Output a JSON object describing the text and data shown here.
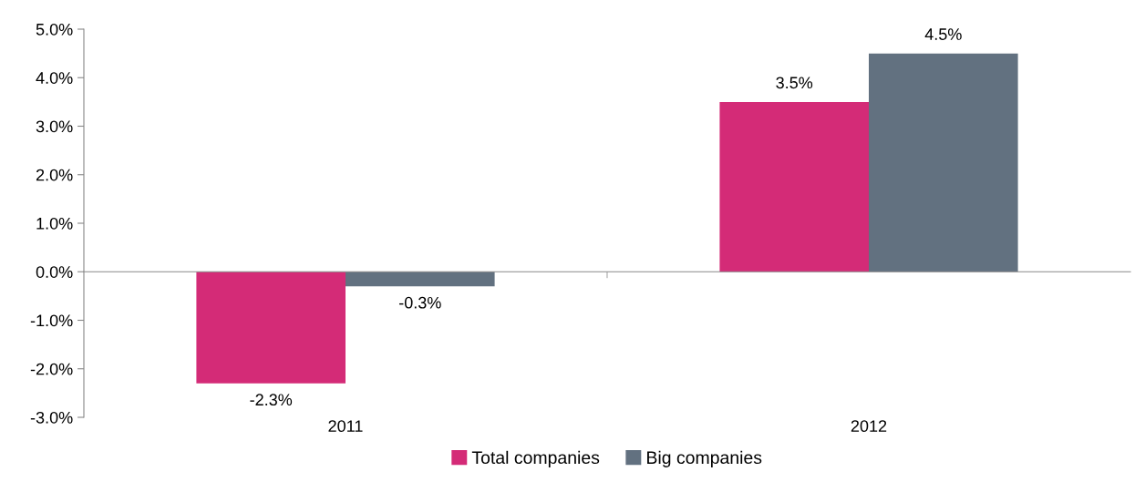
{
  "chart_data": {
    "type": "bar",
    "categories": [
      "2011",
      "2012"
    ],
    "series": [
      {
        "name": "Total companies",
        "color": "#d42b77",
        "values": [
          -2.3,
          3.5
        ],
        "value_labels": [
          "-2.3%",
          "3.5%"
        ]
      },
      {
        "name": "Big companies",
        "color": "#627180",
        "values": [
          -0.3,
          4.5
        ],
        "value_labels": [
          "-0.3%",
          "4.5%"
        ]
      }
    ],
    "ylim": [
      -3,
      5
    ],
    "yticks": [
      {
        "value": -3,
        "label": "-3.0%"
      },
      {
        "value": -2,
        "label": "-2.0%"
      },
      {
        "value": -1,
        "label": "-1.0%"
      },
      {
        "value": 0,
        "label": "0.0%"
      },
      {
        "value": 1,
        "label": "1.0%"
      },
      {
        "value": 2,
        "label": "2.0%"
      },
      {
        "value": 3,
        "label": "3.0%"
      },
      {
        "value": 4,
        "label": "4.0%"
      },
      {
        "value": 5,
        "label": "5.0%"
      }
    ],
    "legend": "bottom"
  }
}
